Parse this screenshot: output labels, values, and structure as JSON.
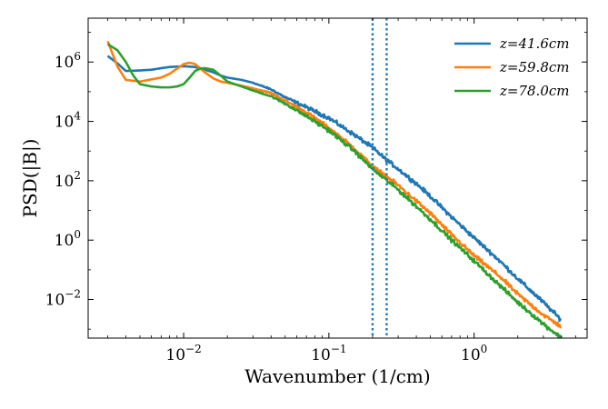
{
  "chart_data": {
    "type": "line",
    "xlabel": "Wavenumber (1/cm)",
    "ylabel": "PSD(|B|)",
    "xscale": "log",
    "yscale": "log",
    "xlim": [
      0.0022,
      6.0
    ],
    "ylim": [
      0.0005,
      30000000
    ],
    "x_ticks": [
      {
        "value": 0.01,
        "base": "10",
        "exp": "−2"
      },
      {
        "value": 0.1,
        "base": "10",
        "exp": "−1"
      },
      {
        "value": 1,
        "base": "10",
        "exp": "0"
      }
    ],
    "y_ticks": [
      {
        "value": 0.01,
        "base": "10",
        "exp": "−2"
      },
      {
        "value": 1,
        "base": "10",
        "exp": "0"
      },
      {
        "value": 100,
        "base": "10",
        "exp": "2"
      },
      {
        "value": 10000,
        "base": "10",
        "exp": "4"
      },
      {
        "value": 1000000,
        "base": "10",
        "exp": "6"
      }
    ],
    "vlines": [
      0.2,
      0.25
    ],
    "vline_color": "#1f77b4",
    "grid": false,
    "legend_position": "top-right",
    "series": [
      {
        "name": "z=41.6cm",
        "color": "#1f77b4",
        "noise": 0.05,
        "points": [
          [
            0.003,
            1600000
          ],
          [
            0.0035,
            900000
          ],
          [
            0.004,
            500000
          ],
          [
            0.005,
            520000
          ],
          [
            0.006,
            550000
          ],
          [
            0.007,
            620000
          ],
          [
            0.008,
            680000
          ],
          [
            0.009,
            700000
          ],
          [
            0.01,
            720000
          ],
          [
            0.012,
            680000
          ],
          [
            0.014,
            550000
          ],
          [
            0.016,
            450000
          ],
          [
            0.018,
            350000
          ],
          [
            0.02,
            300000
          ],
          [
            0.025,
            250000
          ],
          [
            0.03,
            200000
          ],
          [
            0.04,
            120000
          ],
          [
            0.05,
            65000
          ],
          [
            0.07,
            30000
          ],
          [
            0.1,
            13000
          ],
          [
            0.15,
            3500
          ],
          [
            0.2,
            1300
          ],
          [
            0.25,
            500
          ],
          [
            0.3,
            250
          ],
          [
            0.4,
            80
          ],
          [
            0.5,
            30
          ],
          [
            0.7,
            6
          ],
          [
            1.0,
            1.2
          ],
          [
            1.5,
            0.2
          ],
          [
            2.0,
            0.05
          ],
          [
            3.0,
            0.008
          ],
          [
            4.0,
            0.002
          ]
        ]
      },
      {
        "name": "z=59.8cm",
        "color": "#ff7f0e",
        "noise": 0.05,
        "points": [
          [
            0.003,
            5000000
          ],
          [
            0.0035,
            700000
          ],
          [
            0.004,
            250000
          ],
          [
            0.005,
            220000
          ],
          [
            0.006,
            260000
          ],
          [
            0.007,
            300000
          ],
          [
            0.008,
            400000
          ],
          [
            0.009,
            600000
          ],
          [
            0.01,
            850000
          ],
          [
            0.011,
            950000
          ],
          [
            0.012,
            850000
          ],
          [
            0.014,
            450000
          ],
          [
            0.016,
            280000
          ],
          [
            0.018,
            220000
          ],
          [
            0.02,
            200000
          ],
          [
            0.025,
            160000
          ],
          [
            0.03,
            130000
          ],
          [
            0.04,
            90000
          ],
          [
            0.05,
            50000
          ],
          [
            0.07,
            20000
          ],
          [
            0.1,
            6000
          ],
          [
            0.15,
            1200
          ],
          [
            0.2,
            300
          ],
          [
            0.3,
            70
          ],
          [
            0.5,
            8
          ],
          [
            0.7,
            1.5
          ],
          [
            1.0,
            0.3
          ],
          [
            1.5,
            0.06
          ],
          [
            2.0,
            0.015
          ],
          [
            3.0,
            0.003
          ],
          [
            4.0,
            0.0012
          ]
        ]
      },
      {
        "name": "z=78.0cm",
        "color": "#2ca02c",
        "noise": 0.05,
        "points": [
          [
            0.003,
            4000000
          ],
          [
            0.0035,
            2500000
          ],
          [
            0.004,
            1000000
          ],
          [
            0.0045,
            350000
          ],
          [
            0.005,
            180000
          ],
          [
            0.006,
            150000
          ],
          [
            0.007,
            140000
          ],
          [
            0.008,
            140000
          ],
          [
            0.009,
            150000
          ],
          [
            0.01,
            180000
          ],
          [
            0.011,
            300000
          ],
          [
            0.012,
            500000
          ],
          [
            0.013,
            600000
          ],
          [
            0.014,
            620000
          ],
          [
            0.016,
            550000
          ],
          [
            0.018,
            350000
          ],
          [
            0.02,
            220000
          ],
          [
            0.025,
            150000
          ],
          [
            0.03,
            110000
          ],
          [
            0.04,
            70000
          ],
          [
            0.05,
            40000
          ],
          [
            0.07,
            15000
          ],
          [
            0.1,
            5000
          ],
          [
            0.15,
            1000
          ],
          [
            0.2,
            250
          ],
          [
            0.3,
            50
          ],
          [
            0.5,
            5
          ],
          [
            0.7,
            1
          ],
          [
            1.0,
            0.2
          ],
          [
            1.5,
            0.03
          ],
          [
            2.0,
            0.008
          ],
          [
            3.0,
            0.0015
          ],
          [
            4.0,
            0.0005
          ]
        ]
      }
    ]
  }
}
